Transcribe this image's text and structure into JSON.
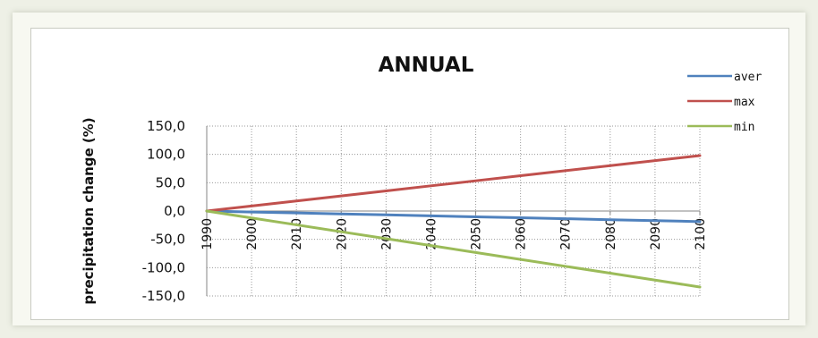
{
  "chart_data": {
    "type": "line",
    "title": "ANNUAL",
    "xlabel": "",
    "ylabel": "precipitation change (%)",
    "x": [
      1990,
      2000,
      2010,
      2020,
      2030,
      2040,
      2050,
      2060,
      2070,
      2080,
      2090,
      2100
    ],
    "x_tick_labels": [
      "1990",
      "2000",
      "2010",
      "2020",
      "2030",
      "2040",
      "2050",
      "2060",
      "2070",
      "2080",
      "2090",
      "2100"
    ],
    "y_tick_labels": [
      "150,0",
      "100,0",
      "50,0",
      "0,0",
      "-50,0",
      "-100,0",
      "-150,0"
    ],
    "y_ticks": [
      150,
      100,
      50,
      0,
      -50,
      -100,
      -150
    ],
    "ylim": [
      -150,
      150
    ],
    "xlim": [
      1990,
      2100
    ],
    "grid": true,
    "legend_position": "top-right",
    "series": [
      {
        "name": "aver",
        "color": "#4f81bd",
        "values": [
          0,
          -1.7,
          -3.4,
          -5.1,
          -6.8,
          -8.5,
          -10.2,
          -11.9,
          -13.6,
          -15.3,
          -17.0,
          -18.7
        ]
      },
      {
        "name": "max",
        "color": "#c0504d",
        "values": [
          0,
          8.9,
          17.8,
          26.7,
          35.6,
          44.5,
          53.4,
          62.3,
          71.2,
          80.1,
          89.0,
          97.9
        ]
      },
      {
        "name": "min",
        "color": "#9bbb59",
        "values": [
          0,
          -12.2,
          -24.4,
          -36.6,
          -48.8,
          -61.0,
          -73.2,
          -85.4,
          -97.6,
          -109.8,
          -122.0,
          -134.2
        ]
      }
    ]
  }
}
